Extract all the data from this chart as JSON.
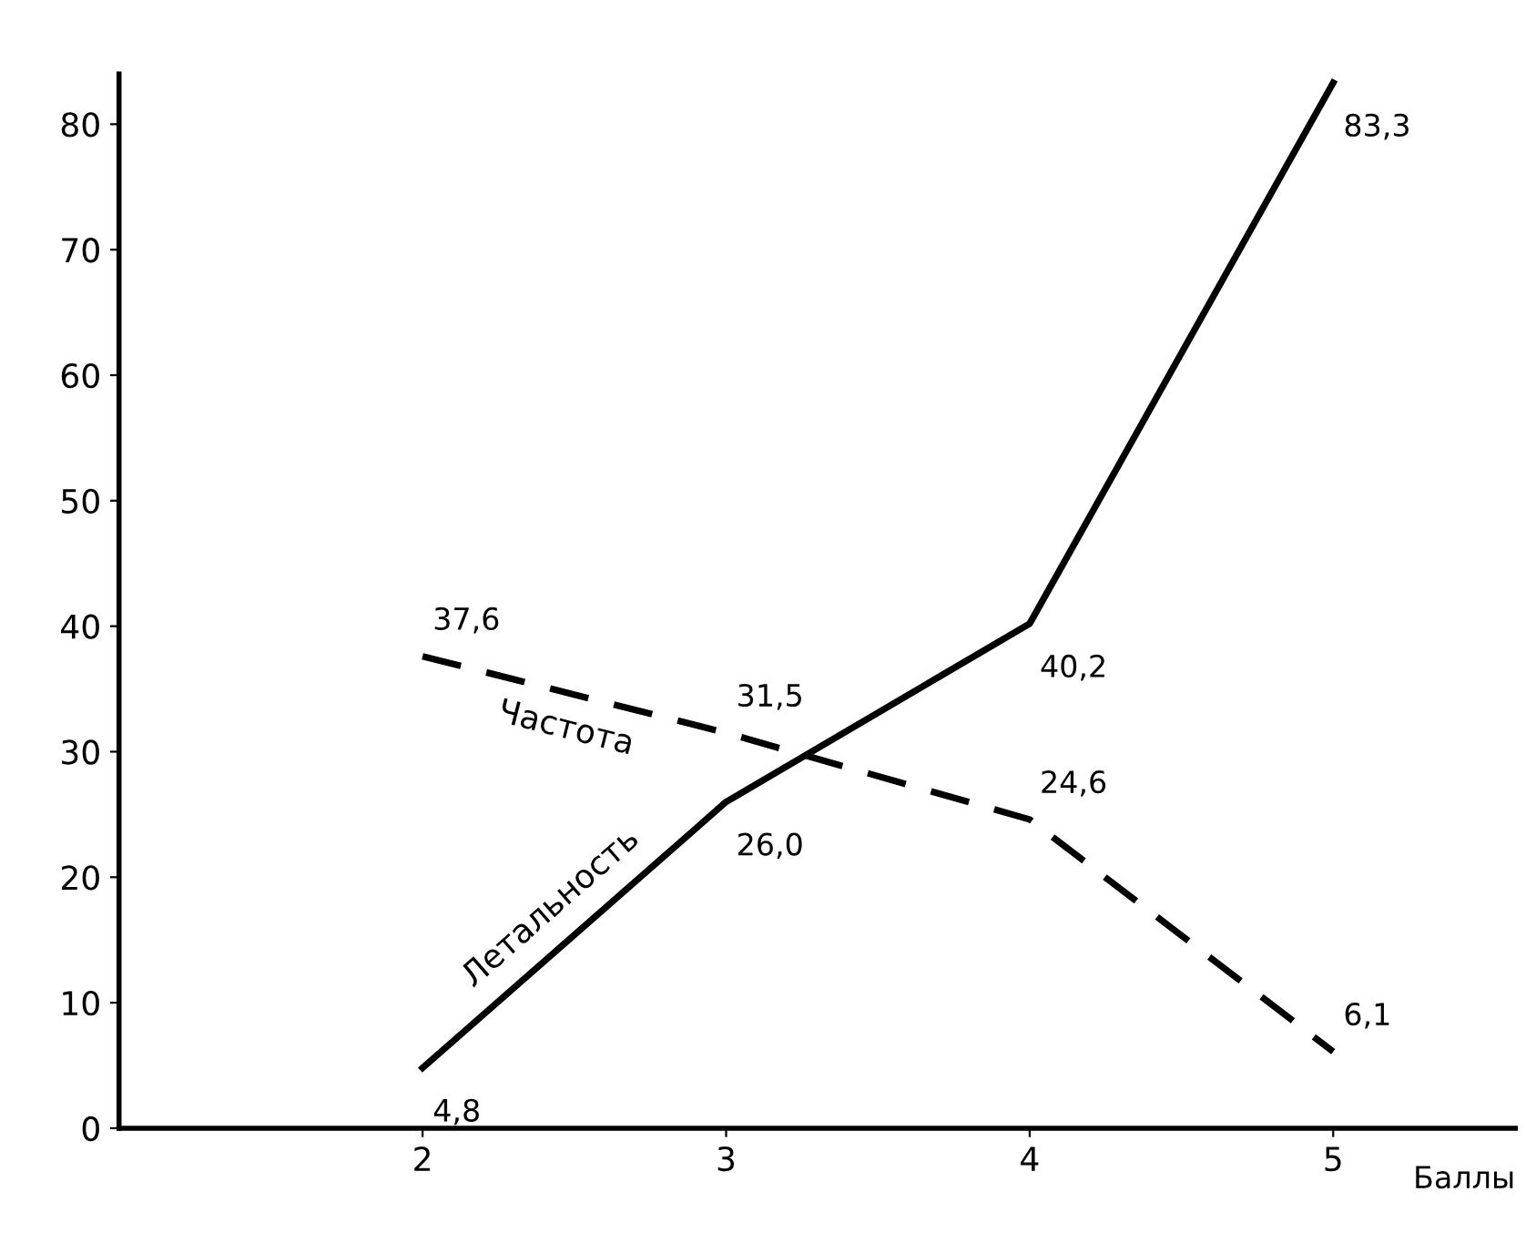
{
  "chart_data": {
    "type": "line",
    "xlabel": "Баллы",
    "x": [
      2,
      3,
      4,
      5
    ],
    "series": [
      {
        "name": "Летальность",
        "color": "#000000",
        "line_style": "solid",
        "values": [
          4.8,
          26.0,
          40.2,
          83.3
        ],
        "value_labels": [
          "4,8",
          "26,0",
          "40,2",
          "83,3"
        ]
      },
      {
        "name": "Частота",
        "color": "#000000",
        "line_style": "dashed",
        "values": [
          37.6,
          31.5,
          24.6,
          6.1
        ],
        "value_labels": [
          "37,6",
          "31,5",
          "24,6",
          "6,1"
        ]
      }
    ],
    "xlim": [
      1,
      5.6
    ],
    "ylim": [
      0,
      84
    ],
    "xticks": [
      2,
      3,
      4,
      5
    ],
    "yticks": [
      0,
      10,
      20,
      30,
      40,
      50,
      60,
      70,
      80
    ],
    "grid": false,
    "legend": false,
    "marker": "none"
  }
}
